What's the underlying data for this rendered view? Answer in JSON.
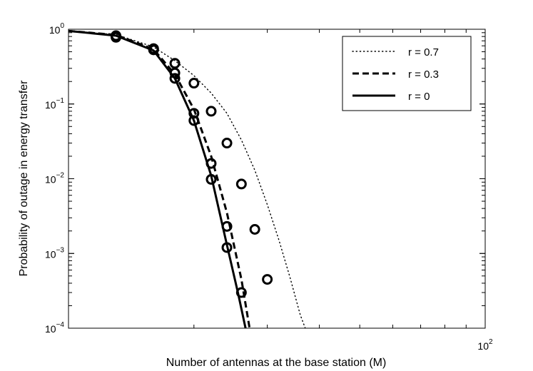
{
  "chart_data": {
    "type": "line",
    "xlabel": "Number of antennas at the base station (M)",
    "ylabel": "Probability of outage in energy transfer",
    "x_scale": "log",
    "y_scale": "log",
    "xlim": [
      10,
      100
    ],
    "ylim": [
      0.0001,
      1
    ],
    "x_tick_labels": [
      {
        "value": 100,
        "base": "10",
        "exp": "2"
      }
    ],
    "y_tick_labels": [
      {
        "value": 1,
        "base": "10",
        "exp": "0"
      },
      {
        "value": 0.1,
        "base": "10",
        "exp": "−1"
      },
      {
        "value": 0.01,
        "base": "10",
        "exp": "−2"
      },
      {
        "value": 0.001,
        "base": "10",
        "exp": "−3"
      },
      {
        "value": 0.0001,
        "base": "10",
        "exp": "−4"
      }
    ],
    "grid": false,
    "legend_position": "top-right",
    "series": [
      {
        "name": "r = 0.7",
        "style": "dotted",
        "curve": [
          [
            10,
            0.95
          ],
          [
            13,
            0.85
          ],
          [
            16,
            0.58
          ],
          [
            18,
            0.38
          ],
          [
            20,
            0.24
          ],
          [
            22,
            0.14
          ],
          [
            24,
            0.075
          ],
          [
            26,
            0.033
          ],
          [
            28,
            0.013
          ],
          [
            30,
            0.0045
          ],
          [
            32,
            0.0015
          ],
          [
            34,
            0.00048
          ],
          [
            36,
            0.00015
          ],
          [
            37,
            0.0001
          ]
        ],
        "markers": [
          [
            16,
            0.55
          ],
          [
            18,
            0.35
          ],
          [
            20,
            0.19
          ],
          [
            22,
            0.08
          ],
          [
            24,
            0.03
          ],
          [
            26,
            0.0085
          ],
          [
            28,
            0.0021
          ],
          [
            30,
            0.00045
          ]
        ]
      },
      {
        "name": "r = 0.3",
        "style": "dashed",
        "curve": [
          [
            10,
            0.95
          ],
          [
            13,
            0.84
          ],
          [
            16,
            0.54
          ],
          [
            18,
            0.25
          ],
          [
            20,
            0.085
          ],
          [
            22,
            0.02
          ],
          [
            24,
            0.0035
          ],
          [
            26,
            0.00045
          ],
          [
            27.2,
            0.0001
          ]
        ],
        "markers": [
          [
            13,
            0.82
          ],
          [
            16,
            0.55
          ],
          [
            18,
            0.26
          ],
          [
            20,
            0.075
          ],
          [
            22,
            0.016
          ],
          [
            24,
            0.0023
          ],
          [
            26,
            0.0003
          ]
        ]
      },
      {
        "name": "r = 0",
        "style": "solid",
        "curve": [
          [
            10,
            0.95
          ],
          [
            13,
            0.82
          ],
          [
            16,
            0.52
          ],
          [
            18,
            0.22
          ],
          [
            20,
            0.06
          ],
          [
            22,
            0.011
          ],
          [
            24,
            0.0013
          ],
          [
            25.5,
            0.0003
          ],
          [
            26.6,
            0.0001
          ]
        ],
        "markers": [
          [
            13,
            0.78
          ],
          [
            16,
            0.53
          ],
          [
            18,
            0.22
          ],
          [
            20,
            0.06
          ],
          [
            22,
            0.0098
          ],
          [
            24,
            0.0012
          ]
        ]
      }
    ]
  }
}
